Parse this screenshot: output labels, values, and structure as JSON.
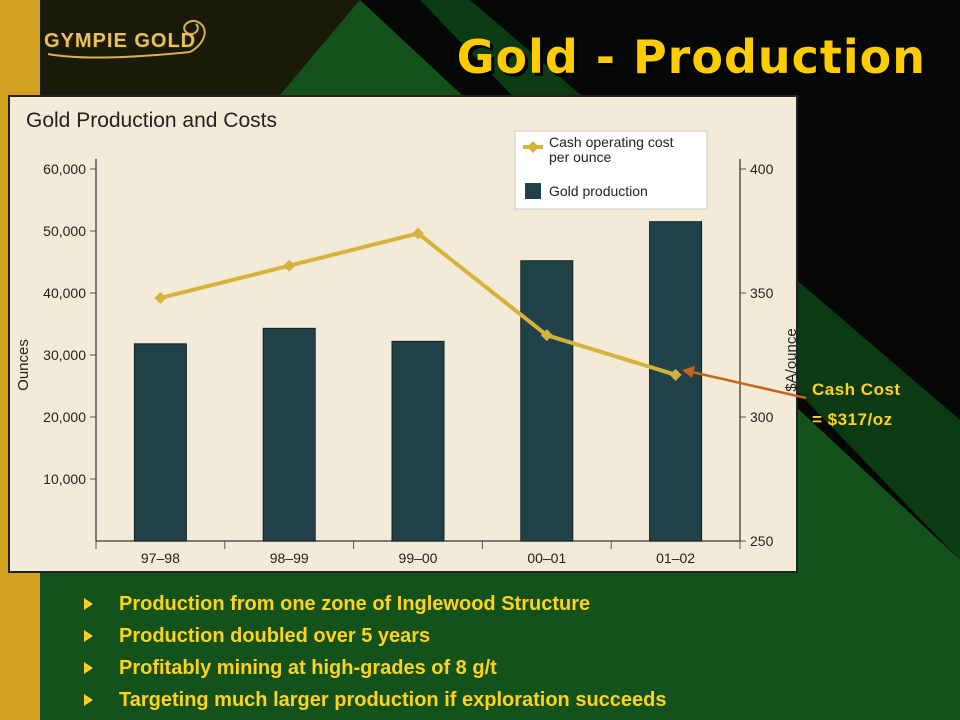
{
  "slide": {
    "logo_text": "GYMPIE GOLD",
    "title": "Gold - Production"
  },
  "callout": {
    "line1": "Cash Cost",
    "line2": "= $317/oz"
  },
  "bullets": [
    "Production from one zone of Inglewood Structure",
    "Production doubled over 5 years",
    "Profitably mining at high-grades of 8 g/t",
    "Targeting much larger production if exploration succeeds"
  ],
  "colors": {
    "title": "#ffcc00",
    "bullet_text": "#ffd21e",
    "bar": "#22424a",
    "line": "#d4b33a",
    "chart_bg": "#f3ebd7",
    "callout_arrow": "#c8641e"
  },
  "chart_data": {
    "type": "bar",
    "title": "Gold Production and Costs",
    "categories": [
      "97–98",
      "98–99",
      "99–00",
      "00–01",
      "01–02"
    ],
    "ylabel": "Ounces",
    "ylabel_right": "$A/ounce",
    "ylim": [
      0,
      60000
    ],
    "ylim_right": [
      250,
      400
    ],
    "yticks": [
      "10,000",
      "20,000",
      "30,000",
      "40,000",
      "50,000",
      "60,000"
    ],
    "yticks_right": [
      "250",
      "300",
      "350",
      "400"
    ],
    "legend_position": "top-right",
    "series": [
      {
        "name": "Gold production",
        "type": "bar",
        "axis": "left",
        "values": [
          31800,
          34300,
          32200,
          45200,
          51500
        ]
      },
      {
        "name": "Cash operating cost per ounce",
        "type": "line",
        "axis": "right",
        "values": [
          348,
          361,
          374,
          333,
          317
        ]
      }
    ],
    "legend_entries": [
      [
        "Cash operating cost",
        "per ounce"
      ],
      [
        "Gold production"
      ]
    ]
  }
}
